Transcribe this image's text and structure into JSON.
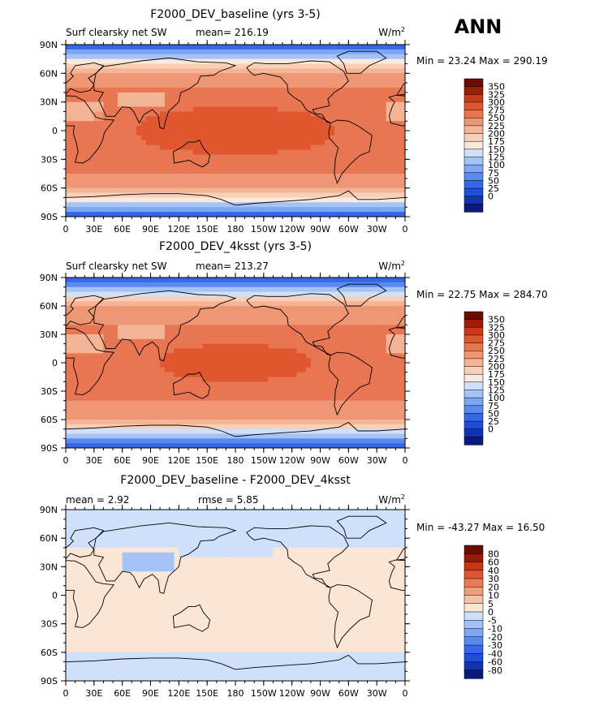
{
  "season_label": "ANN",
  "tick_labels": {
    "lat": [
      "90N",
      "60N",
      "30N",
      "0",
      "30S",
      "60S",
      "90S"
    ],
    "lon": [
      "0",
      "30E",
      "60E",
      "90E",
      "120E",
      "150E",
      "180",
      "150W",
      "120W",
      "90W",
      "60W",
      "30W",
      "0"
    ]
  },
  "colors": {
    "abs_scale": [
      "#0b1a78",
      "#1233b0",
      "#1f4fd8",
      "#3568e8",
      "#5a8af0",
      "#7fa6f4",
      "#a6c3f8",
      "#cfe0fb",
      "#fbe9dd",
      "#f8d0b8",
      "#f4b596",
      "#ef9674",
      "#e97652",
      "#e0572f",
      "#c83a18",
      "#9c1e08",
      "#6e0a02"
    ],
    "diff_scale": [
      "#0b1a78",
      "#1233b0",
      "#1f4fd8",
      "#3568e8",
      "#5a8af0",
      "#7fa6f4",
      "#a6c3f8",
      "#cfe0fb",
      "#fbe6d6",
      "#f4c3a4",
      "#ee9e7c",
      "#e77b58",
      "#dd5431",
      "#c43616",
      "#97190a",
      "#6e0a02"
    ]
  },
  "chart_data": [
    {
      "type": "heatmap",
      "title": "F2000_DEV_baseline (yrs 3-5)",
      "left_label": "Surf clearsky net SW",
      "center_label": "mean= 216.19",
      "units": "W/m",
      "units_exp": "2",
      "minmax": "Min =  23.24 Max = 290.19",
      "colorbar_levels": [
        "350",
        "325",
        "300",
        "275",
        "250",
        "225",
        "200",
        "175",
        "150",
        "125",
        "100",
        "75",
        "50",
        "25",
        "0"
      ],
      "colorbar_min": 0,
      "colorbar_max": 350,
      "field_mean": 216.19,
      "xlim": [
        0,
        360
      ],
      "ylim": [
        -90,
        90
      ]
    },
    {
      "type": "heatmap",
      "title": "F2000_DEV_4ksst (yrs 3-5)",
      "left_label": "Surf clearsky net SW",
      "center_label": "mean= 213.27",
      "units": "W/m",
      "units_exp": "2",
      "minmax": "Min =  22.75 Max = 284.70",
      "colorbar_levels": [
        "350",
        "325",
        "300",
        "275",
        "250",
        "225",
        "200",
        "175",
        "150",
        "125",
        "100",
        "75",
        "50",
        "25",
        "0"
      ],
      "colorbar_min": 0,
      "colorbar_max": 350,
      "field_mean": 213.27,
      "xlim": [
        0,
        360
      ],
      "ylim": [
        -90,
        90
      ]
    },
    {
      "type": "heatmap",
      "title": "F2000_DEV_baseline - F2000_DEV_4ksst",
      "left_label": "mean =    2.92",
      "center_label": "rmse =    5.85",
      "units": "W/m",
      "units_exp": "2",
      "minmax": "Min = -43.27 Max =  16.50",
      "colorbar_levels": [
        "80",
        "60",
        "40",
        "30",
        "20",
        "10",
        "5",
        "0",
        "-5",
        "-10",
        "-20",
        "-30",
        "-40",
        "-60",
        "-80"
      ],
      "colorbar_min": -80,
      "colorbar_max": 80,
      "field_mean": 2.92,
      "field_rmse": 5.85,
      "xlim": [
        0,
        360
      ],
      "ylim": [
        -90,
        90
      ]
    }
  ]
}
